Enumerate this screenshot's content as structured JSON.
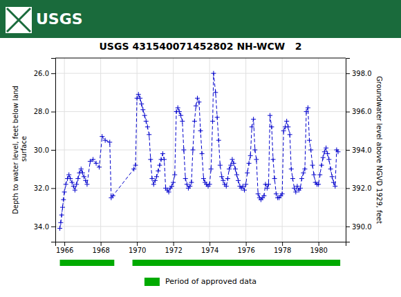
{
  "chart_data": {
    "type": "line",
    "title": "USGS 431540071452802 NH-WCW   2",
    "header": {
      "text": "USGS",
      "color": "#1a6b3c"
    },
    "ylabel": "Depth to water level, feet below land\n surface",
    "y2label": "Groundwater level above NGVD 1929, feet",
    "xlim": [
      1965.5,
      1981.5
    ],
    "xticks": [
      1966,
      1968,
      1970,
      1972,
      1974,
      1976,
      1978,
      1980
    ],
    "ylim": [
      34.8,
      25.2
    ],
    "yticks": [
      {
        "value": 26.0,
        "label": "26.0"
      },
      {
        "value": 28.0,
        "label": "28.0"
      },
      {
        "value": 30.0,
        "label": "30.0"
      },
      {
        "value": 32.0,
        "label": "32.0"
      },
      {
        "value": 34.0,
        "label": "34.0"
      }
    ],
    "y2lim": [
      389.2,
      398.8
    ],
    "y2ticks": [
      {
        "value": 398.0,
        "label": "398.0"
      },
      {
        "value": 396.0,
        "label": "396.0"
      },
      {
        "value": 394.0,
        "label": "394.0"
      },
      {
        "value": 392.0,
        "label": "392.0"
      },
      {
        "value": 390.0,
        "label": "390.0"
      }
    ],
    "grid": true,
    "x": [
      1965.75,
      1965.8,
      1965.85,
      1965.9,
      1965.95,
      1966.0,
      1966.08,
      1966.17,
      1966.25,
      1966.33,
      1966.42,
      1966.5,
      1966.58,
      1966.67,
      1966.75,
      1966.83,
      1966.92,
      1967.0,
      1967.08,
      1967.17,
      1967.25,
      1967.42,
      1967.58,
      1967.75,
      1967.92,
      1968.08,
      1968.25,
      1968.5,
      1968.58,
      1968.67,
      1969.83,
      1969.92,
      1970.0,
      1970.08,
      1970.17,
      1970.25,
      1970.33,
      1970.42,
      1970.5,
      1970.58,
      1970.67,
      1970.75,
      1970.83,
      1970.92,
      1971.0,
      1971.08,
      1971.17,
      1971.25,
      1971.33,
      1971.42,
      1971.5,
      1971.58,
      1971.67,
      1971.75,
      1971.83,
      1971.92,
      1972.0,
      1972.08,
      1972.17,
      1972.25,
      1972.33,
      1972.42,
      1972.5,
      1972.58,
      1972.67,
      1972.75,
      1972.83,
      1972.92,
      1973.0,
      1973.08,
      1973.17,
      1973.25,
      1973.33,
      1973.42,
      1973.5,
      1973.58,
      1973.67,
      1973.75,
      1973.83,
      1973.92,
      1974.0,
      1974.08,
      1974.17,
      1974.22,
      1974.33,
      1974.42,
      1974.5,
      1974.58,
      1974.67,
      1974.75,
      1974.83,
      1974.92,
      1975.0,
      1975.08,
      1975.17,
      1975.25,
      1975.33,
      1975.42,
      1975.5,
      1975.58,
      1975.67,
      1975.75,
      1975.83,
      1975.92,
      1976.0,
      1976.08,
      1976.17,
      1976.25,
      1976.33,
      1976.42,
      1976.5,
      1976.58,
      1976.67,
      1976.75,
      1976.83,
      1976.92,
      1977.0,
      1977.08,
      1977.17,
      1977.25,
      1977.33,
      1977.42,
      1977.5,
      1977.58,
      1977.67,
      1977.75,
      1977.83,
      1977.92,
      1978.0,
      1978.08,
      1978.17,
      1978.25,
      1978.33,
      1978.42,
      1978.5,
      1978.58,
      1978.67,
      1978.75,
      1978.83,
      1978.92,
      1979.0,
      1979.08,
      1979.17,
      1979.25,
      1979.33,
      1979.42,
      1979.5,
      1979.58,
      1979.67,
      1979.75,
      1979.83,
      1979.92,
      1980.0,
      1980.08,
      1980.17,
      1980.25,
      1980.33,
      1980.42,
      1980.5,
      1980.58,
      1980.67,
      1980.75,
      1980.83,
      1980.92,
      1981.0,
      1981.08
    ],
    "series": [
      {
        "color": "#0000CC",
        "marker": "plus",
        "line_style": "dashed",
        "values": [
          34.1,
          33.8,
          33.4,
          33.0,
          32.6,
          32.2,
          31.8,
          31.5,
          31.3,
          31.5,
          31.7,
          31.9,
          32.1,
          31.8,
          31.5,
          31.2,
          31.0,
          31.2,
          31.4,
          31.6,
          31.8,
          30.6,
          30.5,
          30.7,
          30.9,
          29.3,
          29.5,
          29.6,
          32.5,
          32.4,
          31.0,
          30.8,
          27.3,
          27.1,
          27.3,
          27.6,
          27.9,
          28.2,
          28.5,
          28.8,
          29.2,
          30.5,
          31.5,
          31.8,
          31.6,
          31.4,
          31.1,
          30.8,
          30.5,
          30.2,
          30.5,
          32.0,
          32.1,
          32.2,
          32.0,
          31.9,
          31.7,
          31.3,
          28.0,
          27.8,
          28.0,
          28.2,
          28.5,
          30.0,
          31.5,
          31.8,
          32.0,
          31.9,
          31.7,
          30.0,
          28.5,
          27.7,
          27.3,
          27.5,
          29.0,
          30.2,
          31.5,
          31.7,
          31.8,
          31.9,
          31.8,
          31.0,
          28.5,
          26.0,
          27.0,
          28.3,
          29.5,
          30.8,
          31.4,
          31.6,
          31.8,
          31.9,
          31.5,
          31.0,
          30.8,
          30.5,
          30.7,
          31.0,
          31.3,
          31.6,
          31.9,
          32.0,
          31.9,
          32.1,
          31.8,
          31.2,
          30.7,
          30.3,
          28.8,
          28.4,
          30.0,
          30.5,
          32.3,
          32.5,
          32.6,
          32.5,
          32.4,
          31.8,
          32.0,
          31.8,
          28.2,
          28.8,
          30.5,
          31.5,
          32.3,
          32.5,
          32.5,
          32.4,
          32.3,
          29.0,
          28.8,
          28.5,
          28.8,
          29.2,
          31.0,
          31.5,
          32.0,
          32.2,
          31.9,
          32.1,
          32.0,
          31.5,
          31.2,
          31.0,
          28.0,
          27.8,
          29.5,
          30.0,
          30.8,
          31.3,
          31.7,
          31.8,
          31.8,
          31.3,
          30.8,
          30.4,
          30.1,
          29.9,
          30.2,
          30.5,
          31.0,
          31.4,
          31.7,
          31.9,
          30.0,
          30.1
        ]
      }
    ],
    "approved_periods": {
      "name": "Period of approved data",
      "color": "#00AA00",
      "ranges": [
        [
          1965.75,
          1968.75
        ],
        [
          1969.75,
          1981.2
        ]
      ]
    }
  }
}
